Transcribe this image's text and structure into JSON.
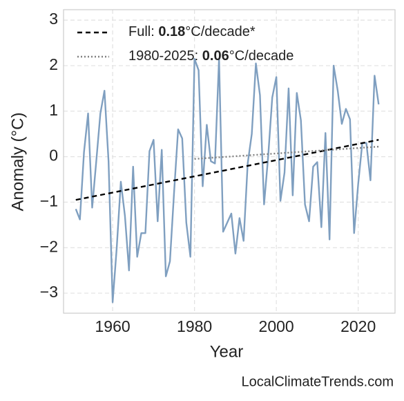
{
  "chart_data": {
    "type": "line",
    "xlabel": "Year",
    "ylabel": "Anomaly (°C)",
    "source": "LocalClimateTrends.com",
    "x": [
      1951,
      1952,
      1953,
      1954,
      1955,
      1956,
      1957,
      1958,
      1959,
      1960,
      1961,
      1962,
      1963,
      1964,
      1965,
      1966,
      1967,
      1968,
      1969,
      1970,
      1971,
      1972,
      1973,
      1974,
      1975,
      1976,
      1977,
      1978,
      1979,
      1980,
      1981,
      1982,
      1983,
      1984,
      1985,
      1986,
      1987,
      1988,
      1989,
      1990,
      1991,
      1992,
      1993,
      1994,
      1995,
      1996,
      1997,
      1998,
      1999,
      2000,
      2001,
      2002,
      2003,
      2004,
      2005,
      2006,
      2007,
      2008,
      2009,
      2010,
      2011,
      2012,
      2013,
      2014,
      2015,
      2016,
      2017,
      2018,
      2019,
      2020,
      2021,
      2022,
      2023,
      2024,
      2025
    ],
    "series": [
      {
        "color": "#7f9fc0",
        "values": [
          -1.15,
          -1.38,
          0.1,
          0.95,
          -1.12,
          -0.1,
          0.95,
          1.45,
          -0.1,
          -3.2,
          -2.0,
          -0.55,
          -1.3,
          -2.5,
          -0.22,
          -2.2,
          -1.68,
          -1.68,
          0.12,
          0.37,
          -1.42,
          0.15,
          -2.63,
          -2.3,
          -0.8,
          0.6,
          0.4,
          -1.45,
          -2.2,
          2.15,
          1.9,
          -0.65,
          0.7,
          -0.1,
          -0.15,
          2.15,
          -1.65,
          -1.45,
          -1.25,
          -2.13,
          -1.35,
          -1.85,
          -0.15,
          0.5,
          2.05,
          1.35,
          -1.05,
          0.0,
          1.3,
          1.75,
          -0.97,
          -0.35,
          1.5,
          -0.85,
          1.4,
          0.8,
          -1.05,
          -1.42,
          -0.22,
          -0.12,
          -1.55,
          0.52,
          -1.82,
          2.0,
          1.45,
          0.72,
          1.05,
          0.82,
          -1.68,
          -0.6,
          0.3,
          0.3,
          -0.52,
          1.78,
          1.15
        ]
      }
    ],
    "trends": [
      {
        "name": "Full: ",
        "rate": "0.18",
        "unit": "°C/decade*",
        "color": "#000000",
        "dash": "7,5",
        "x": [
          1951,
          2025
        ],
        "values": [
          -0.95,
          0.37
        ]
      },
      {
        "name": "1980-2025: ",
        "rate": "0.06",
        "unit": "°C/decade",
        "color": "#808080",
        "dash": "2,3",
        "x": [
          1980,
          2025
        ],
        "values": [
          -0.05,
          0.22
        ]
      }
    ],
    "xlim": [
      1948,
      2029
    ],
    "ylim": [
      -3.44,
      3.23
    ],
    "xticks": [
      1960,
      1980,
      2000,
      2020
    ],
    "yticks": [
      {
        "value": -3,
        "label": "−3"
      },
      {
        "value": -2,
        "label": "−2"
      },
      {
        "value": -1,
        "label": "−1"
      },
      0,
      1,
      2,
      3
    ],
    "grid": true
  }
}
